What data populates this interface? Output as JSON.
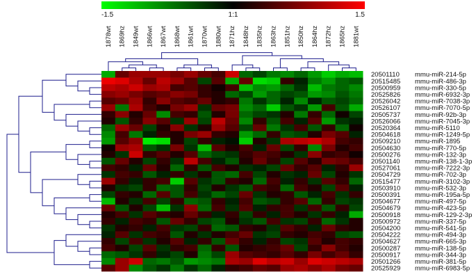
{
  "chart_data": {
    "type": "heatmap",
    "color_scale": {
      "min_label": "-1.5",
      "mid_label": "1:1",
      "max_label": "1.5",
      "min": -1.5,
      "max": 1.5,
      "low_color": "#00ff00",
      "mid_color": "#000000",
      "high_color": "#ff0000"
    },
    "columns": [
      "1878wt",
      "1869hz",
      "1849wt",
      "1866wt",
      "1867wt",
      "1868wt",
      "1861wt",
      "1870wt",
      "1880wt",
      "1871hz",
      "1848hz",
      "1835hz",
      "1863hz",
      "1851hz",
      "1850hz",
      "1864hz",
      "1872hz",
      "1865hz",
      "1881wt"
    ],
    "row_ids": [
      "20501110",
      "20515485",
      "20500959",
      "20525826",
      "20526042",
      "20526107",
      "20505737",
      "20526066",
      "20520364",
      "20504618",
      "20509210",
      "20504630",
      "20500276",
      "20501140",
      "20527061",
      "20504729",
      "20515477",
      "20503910",
      "20500391",
      "20504677",
      "20504679",
      "20500918",
      "20500972",
      "20504200",
      "20504222",
      "20504627",
      "20500287",
      "20500917",
      "20501266",
      "20525929"
    ],
    "row_names": [
      "mmu-miR-214-5p",
      "mmu-miR-486-3p",
      "mmu-miR-330-5p",
      "mmu-miR-6932-3p",
      "mmu-miR-7038-3p",
      "mmu-miR-7070-5p",
      "mmu-miR-92b-3p",
      "mmu-miR-7045-3p",
      "mmu-miR-5110",
      "mmu-miR-1249-5p",
      "mmu-miR-1895",
      "mmu-miR-770-5p",
      "mmu-miR-132-3p",
      "mmu-miR-138-1-3p",
      "mmu-miR-7222-3p",
      "mmu-miR-702-3p",
      "mmu-miR-3102-3p",
      "mmu-miR-532-3p",
      "mmu-miR-195a-5p",
      "mmu-miR-497-5p",
      "mmu-miR-423-5p",
      "mmu-miR-129-2-3p",
      "mmu-miR-337-5p",
      "mmu-miR-541-5p",
      "mmu-miR-494-3p",
      "mmu-miR-665-3p",
      "mmu-miR-138-5p",
      "mmu-miR-344-3p",
      "mmu-miR-381-5p",
      "mmu-miR-6983-5p"
    ],
    "values": [
      [
        -1.0,
        0.6,
        0.9,
        0.9,
        0.9,
        0.7,
        0.9,
        0.6,
        0.4,
        1.2,
        -0.6,
        -0.4,
        -0.7,
        -0.8,
        -0.6,
        -0.9,
        -1.2,
        -1.0,
        -1.1
      ],
      [
        1.4,
        1.3,
        1.0,
        0.6,
        1.1,
        0.9,
        0.5,
        -0.4,
        0.5,
        -1.0,
        0.6,
        -1.3,
        -1.2,
        0.3,
        -0.2,
        -0.7,
        -0.9,
        -0.6,
        -0.5
      ],
      [
        1.1,
        1.0,
        1.2,
        0.9,
        1.0,
        0.4,
        0.5,
        0.3,
        0.1,
        0.4,
        -1.1,
        -0.8,
        -0.9,
        -0.6,
        -0.3,
        -1.1,
        -0.7,
        -0.6,
        -0.8
      ],
      [
        0.8,
        0.9,
        0.7,
        0.5,
        0.6,
        0.8,
        0.7,
        0.3,
        0.2,
        -0.6,
        -0.4,
        -0.9,
        -0.6,
        -0.4,
        -0.5,
        -0.9,
        -0.8,
        -0.5,
        -0.7
      ],
      [
        0.5,
        0.6,
        0.9,
        0.3,
        0.8,
        0.5,
        0.4,
        0.6,
        0.2,
        0.3,
        -0.7,
        -0.3,
        -0.6,
        -0.2,
        -0.8,
        -0.2,
        -0.5,
        -0.4,
        -0.6
      ],
      [
        0.9,
        -0.7,
        1.0,
        0.4,
        0.2,
        0.7,
        0.9,
        -0.3,
        0.6,
        0.7,
        -0.8,
        -0.6,
        -1.2,
        -0.5,
        -0.3,
        -0.9,
        0.4,
        -0.5,
        -1.0
      ],
      [
        0.3,
        0.8,
        0.2,
        0.6,
        -0.8,
        0.4,
        0.3,
        -0.5,
        0.2,
        0.7,
        -0.6,
        -0.4,
        -0.3,
        0.2,
        -0.7,
        0.3,
        -0.6,
        0.1,
        -0.4
      ],
      [
        0.2,
        -0.5,
        0.3,
        0.8,
        0.5,
        -0.3,
        0.9,
        -0.4,
        1.1,
        0.6,
        -0.8,
        0.3,
        -0.5,
        0.4,
        -0.2,
        0.5,
        -0.9,
        -0.3,
        -0.2
      ],
      [
        -0.6,
        0.9,
        0.6,
        -0.4,
        0.2,
        0.8,
        -0.3,
        0.2,
        0.9,
        0.5,
        -0.4,
        0.6,
        -0.7,
        -0.3,
        0.4,
        -0.5,
        0.3,
        -0.6,
        0.1
      ],
      [
        -0.8,
        0.4,
        -0.7,
        -0.2,
        0.3,
        0.2,
        0.7,
        0.9,
        0.3,
        0.2,
        -0.9,
        -0.6,
        0.3,
        -0.5,
        -0.4,
        0.2,
        0.7,
        0.5,
        -0.2
      ],
      [
        -0.9,
        0.5,
        0.8,
        -1.4,
        -1.3,
        0.2,
        -0.4,
        0.3,
        -0.2,
        -0.1,
        -1.2,
        0.2,
        -0.3,
        1.0,
        1.1,
        1.2,
        1.0,
        0.4,
        0.3
      ],
      [
        0.1,
        0.9,
        1.0,
        -0.5,
        -0.3,
        0.7,
        -0.3,
        -1.1,
        0.5,
        0.2,
        0.4,
        -0.2,
        0.6,
        -0.4,
        0.3,
        -0.8,
        0.7,
        0.2,
        0.4
      ],
      [
        0.2,
        -0.3,
        1.2,
        0.3,
        0.5,
        0.2,
        0.5,
        -0.6,
        -0.4,
        -0.3,
        0.3,
        0.5,
        0.4,
        0.2,
        -0.3,
        0.8,
        0.3,
        0.4,
        0.1
      ],
      [
        -0.5,
        0.6,
        0.2,
        -0.4,
        0.3,
        -0.3,
        1.1,
        0.4,
        -0.2,
        -0.5,
        0.2,
        0.6,
        0.3,
        -0.4,
        0.5,
        0.2,
        0.7,
        0.6,
        0.4
      ],
      [
        0.4,
        0.3,
        -0.2,
        0.6,
        0.2,
        -0.6,
        0.3,
        -0.5,
        0.4,
        0.2,
        -0.3,
        -0.2,
        -0.4,
        0.6,
        0.3,
        0.5,
        -0.2,
        0.3,
        0.9
      ],
      [
        -0.3,
        0.4,
        0.3,
        -0.5,
        -0.2,
        0.3,
        -0.3,
        0.2,
        -0.5,
        -0.6,
        0.4,
        -0.4,
        0.2,
        -0.3,
        -0.2,
        0.6,
        -0.4,
        0.2,
        -0.3
      ],
      [
        0.9,
        0.3,
        -0.2,
        0.3,
        0.4,
        -1.2,
        0.5,
        -0.3,
        -0.5,
        0.3,
        0.2,
        -0.6,
        0.4,
        -0.2,
        0.3,
        -0.3,
        0.5,
        0.3,
        -0.6
      ],
      [
        0.2,
        -0.3,
        -0.4,
        0.3,
        -0.6,
        -0.5,
        0.3,
        -0.4,
        0.2,
        -0.3,
        -0.5,
        0.4,
        0.3,
        -0.6,
        0.4,
        0.2,
        -0.4,
        0.5,
        -0.2
      ],
      [
        -0.4,
        0.3,
        0.2,
        -0.6,
        0.5,
        -0.5,
        0.4,
        -0.3,
        -0.6,
        -0.4,
        0.6,
        -0.3,
        0.2,
        0.3,
        -0.5,
        -0.2,
        0.4,
        -0.3,
        0.3
      ],
      [
        -1.1,
        0.2,
        -0.3,
        0.4,
        -0.4,
        0.3,
        -0.6,
        -0.5,
        0.3,
        -0.2,
        0.4,
        -0.5,
        -0.4,
        0.3,
        0.5,
        -0.6,
        0.3,
        -0.4,
        -0.3
      ],
      [
        0.6,
        -0.5,
        0.2,
        -0.4,
        -1.1,
        -0.3,
        0.8,
        -0.6,
        0.4,
        -0.3,
        0.5,
        -0.2,
        0.3,
        0.4,
        -0.3,
        0.4,
        -0.5,
        0.3,
        -0.4
      ],
      [
        0.2,
        0.4,
        -0.3,
        0.5,
        0.3,
        0.2,
        0.6,
        0.3,
        -0.2,
        0.3,
        -0.4,
        0.3,
        -0.2,
        0.4,
        0.2,
        -0.3,
        0.3,
        -0.2,
        -1.0
      ],
      [
        0.3,
        -0.2,
        0.4,
        0.3,
        -0.5,
        0.6,
        0.3,
        -0.4,
        -0.5,
        0.2,
        -0.3,
        -0.5,
        0.4,
        -0.3,
        -0.4,
        0.3,
        -0.6,
        -0.3,
        0.2
      ],
      [
        -0.3,
        0.2,
        0.3,
        -0.2,
        0.4,
        -0.3,
        -0.4,
        0.3,
        -0.6,
        -0.5,
        0.3,
        0.2,
        -0.3,
        0.5,
        0.3,
        -0.2,
        0.6,
        0.3,
        0.2
      ],
      [
        -0.2,
        0.5,
        -0.3,
        0.4,
        0.3,
        -0.5,
        0.2,
        -0.3,
        0.2,
        0.4,
        0.6,
        -0.3,
        -0.4,
        0.3,
        0.2,
        0.4,
        0.3,
        -0.4,
        -0.5
      ],
      [
        0.3,
        -0.4,
        0.4,
        -0.3,
        0.2,
        0.5,
        -0.2,
        0.3,
        -0.5,
        0.6,
        0.3,
        -0.2,
        0.3,
        -0.4,
        -0.3,
        0.5,
        0.2,
        0.4,
        0.3
      ],
      [
        0.4,
        0.2,
        -0.4,
        0.5,
        -0.3,
        0.3,
        0.4,
        -0.6,
        0.3,
        -0.5,
        0.2,
        0.3,
        0.4,
        0.6,
        -0.4,
        0.3,
        0.8,
        0.4,
        0.2
      ],
      [
        -0.6,
        -0.5,
        -0.3,
        0.3,
        -0.2,
        -0.4,
        0.2,
        -0.7,
        -0.4,
        0.9,
        0.5,
        0.4,
        0.3,
        0.5,
        0.3,
        0.7,
        0.4,
        0.6,
        0.3
      ],
      [
        -0.8,
        0.9,
        1.2,
        -0.6,
        -0.7,
        -0.5,
        -0.9,
        -0.8,
        -0.7,
        1.0,
        0.9,
        1.3,
        1.1,
        1.2,
        0.9,
        1.3,
        1.2,
        1.1,
        1.0
      ],
      [
        0.5,
        0.9,
        -0.8,
        -0.5,
        -0.3,
        -0.7,
        -0.3,
        -0.6,
        -0.2,
        0.3,
        0.4,
        0.6,
        0.5,
        0.9,
        1.0,
        0.8,
        1.0,
        0.7,
        0.6
      ]
    ]
  }
}
